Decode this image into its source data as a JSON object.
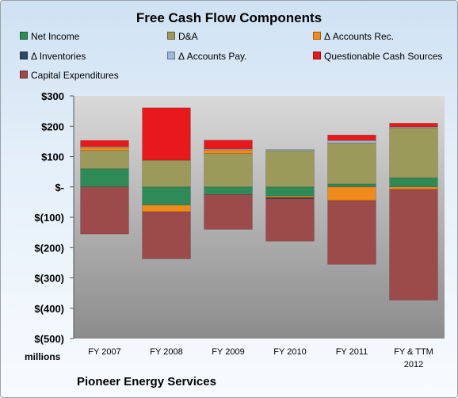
{
  "chart_data": {
    "type": "bar",
    "stacked": true,
    "title": "Free Cash Flow Components",
    "unit_label": "millions",
    "company": "Pioneer Energy Services",
    "categories": [
      "FY 2007",
      "FY 2008",
      "FY 2009",
      "FY 2010",
      "FY 2011",
      "FY & TTM 2012"
    ],
    "category_lines": [
      [
        "FY 2007"
      ],
      [
        "FY 2008"
      ],
      [
        "FY 2009"
      ],
      [
        "FY 2010"
      ],
      [
        "FY 2011"
      ],
      [
        "FY & TTM",
        "2012"
      ]
    ],
    "ylim": [
      -500,
      300
    ],
    "yticks": [
      300,
      200,
      100,
      0,
      -100,
      -200,
      -300,
      -400,
      -500
    ],
    "ytick_labels": [
      "$300",
      "$200",
      "$100",
      "$-",
      "$(100)",
      "$(200)",
      "$(300)",
      "$(400)",
      "$(500)"
    ],
    "legend_position": "top",
    "series": [
      {
        "name": "Net Income",
        "color": "#2e8b57",
        "values": [
          60,
          -60,
          -25,
          -30,
          10,
          30
        ]
      },
      {
        "name": "D&A",
        "color": "#9c9a5a",
        "values": [
          60,
          88,
          110,
          120,
          135,
          165
        ]
      },
      {
        "name": "Δ Accounts Rec.",
        "color": "#f08a1a",
        "values": [
          10,
          -22,
          12,
          -5,
          -45,
          -8
        ]
      },
      {
        "name": "Δ Inventories",
        "color": "#2c4a63",
        "values": [
          0,
          0,
          0,
          -4,
          0,
          0
        ]
      },
      {
        "name": "Δ Accounts Pay.",
        "color": "#9ab8d8",
        "values": [
          3,
          0,
          3,
          4,
          8,
          3
        ]
      },
      {
        "name": "Questionable Cash Sources",
        "color": "#e8191c",
        "values": [
          20,
          173,
          29,
          0,
          18,
          12
        ]
      },
      {
        "name": "Capital Expenditures",
        "color": "#9c4a4a",
        "values": [
          -155,
          -155,
          -115,
          -140,
          -210,
          -365
        ]
      }
    ]
  }
}
